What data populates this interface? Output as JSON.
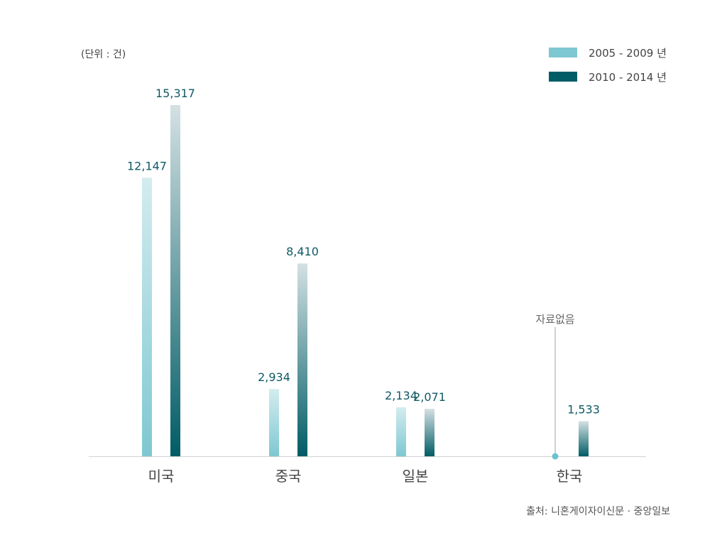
{
  "unit_label": "(단위 : 건)",
  "source_label": "출처: 니혼게이자이신문 · 중앙일보",
  "colors": {
    "series1_top": "#d3ecef",
    "series1_bottom": "#7ec8d1",
    "series2_top": "#d4e1e3",
    "series2_bottom": "#005c66",
    "value_label": "#0f5a63",
    "category_label": "#444444",
    "axis": "#cfd3d4",
    "annotation": "#666666",
    "marker": "#6cc3cf"
  },
  "chart_data": {
    "type": "bar",
    "categories": [
      "미국",
      "중국",
      "일본",
      "한국"
    ],
    "series": [
      {
        "name": "2005 - 2009 년",
        "values": [
          12147,
          2934,
          2134,
          null
        ],
        "labels": [
          "12,147",
          "2,934",
          "2,134",
          ""
        ]
      },
      {
        "name": "2010 - 2014 년",
        "values": [
          15317,
          8410,
          2071,
          1533
        ],
        "labels": [
          "15,317",
          "8,410",
          "2,071",
          "1,533"
        ]
      }
    ],
    "annotations": [
      {
        "category": "한국",
        "series": "2005 - 2009 년",
        "text": "자료없음"
      }
    ],
    "ylim": [
      0,
      15317
    ],
    "grid": false,
    "legend": "top-right",
    "xlabel": "",
    "ylabel": ""
  }
}
